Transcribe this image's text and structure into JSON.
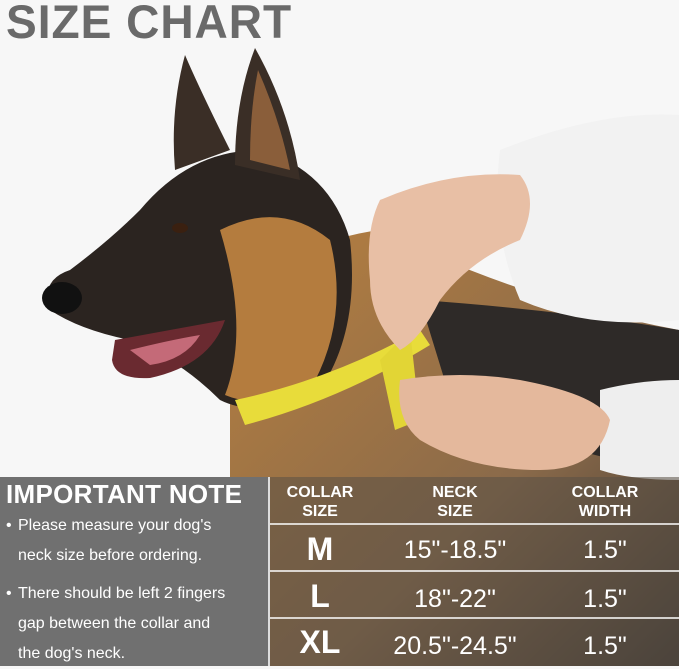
{
  "title": "SIZE CHART",
  "note": {
    "heading": "IMPORTANT NOTE",
    "bullets": [
      {
        "line1": "Please measure your dog's",
        "line2": "neck size before ordering."
      },
      {
        "line1": "There should be left 2 fingers",
        "line2": "gap between the collar and",
        "line3": "the dog's neck."
      }
    ]
  },
  "table": {
    "headers": [
      {
        "line1": "COLLAR",
        "line2": "SIZE"
      },
      {
        "line1": "NECK",
        "line2": "SIZE"
      },
      {
        "line1": "COLLAR",
        "line2": "WIDTH"
      }
    ],
    "rows": [
      {
        "size": "M",
        "neck": "15\"-18.5\"",
        "width": "1.5\""
      },
      {
        "size": "L",
        "neck": "18\"-22\"",
        "width": "1.5\""
      },
      {
        "size": "XL",
        "neck": "20.5\"-24.5\"",
        "width": "1.5\""
      }
    ]
  },
  "colors": {
    "title": "#6a6a6a",
    "panel": "#707070",
    "tape": "#e8dc3a"
  }
}
